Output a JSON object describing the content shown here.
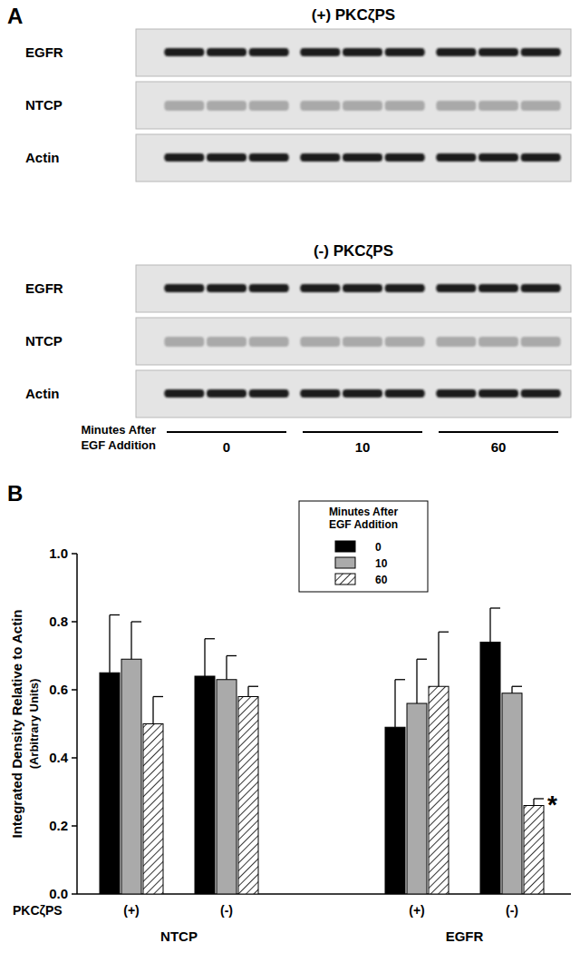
{
  "panel_a": {
    "label": "A",
    "blots": [
      {
        "title": "(+) PKCζPS",
        "rows": [
          "EGFR",
          "NTCP",
          "Actin"
        ]
      },
      {
        "title": "(-) PKCζPS",
        "rows": [
          "EGFR",
          "NTCP",
          "Actin"
        ]
      }
    ],
    "time_axis": {
      "label": "Minutes After EGF Addition",
      "groups": [
        0,
        10,
        60
      ]
    }
  },
  "chart_data": {
    "type": "bar",
    "label": "B",
    "y_label": [
      "Integrated Density Relative to Actin",
      "(Arbitrary Units)"
    ],
    "categories": [
      "(+)",
      "(-)",
      "(+)",
      "(-)"
    ],
    "category_row_label": "PKCζPS",
    "category_groups": [
      "NTCP",
      "EGFR"
    ],
    "series": [
      {
        "name": "0",
        "color": "#000000",
        "values": [
          0.65,
          0.64,
          0.49,
          0.74
        ],
        "errors": [
          0.17,
          0.11,
          0.14,
          0.1
        ]
      },
      {
        "name": "10",
        "color": "#aaaaaa",
        "values": [
          0.69,
          0.63,
          0.56,
          0.59
        ],
        "errors": [
          0.11,
          0.07,
          0.13,
          0.02
        ]
      },
      {
        "name": "60",
        "color": "#ffffff",
        "values": [
          0.5,
          0.58,
          0.61,
          0.26
        ],
        "errors": [
          0.08,
          0.03,
          0.16,
          0.02
        ],
        "annotations": [
          null,
          null,
          null,
          "*"
        ]
      }
    ],
    "legend_title": "Minutes After EGF Addition",
    "legend": "top",
    "ylim": [
      0,
      1.0
    ],
    "yticks": [
      {
        "value": 0,
        "label": "0.0"
      },
      0.2,
      0.4,
      0.6,
      0.8,
      {
        "value": 1.0,
        "label": "1.0"
      }
    ],
    "grid": false
  }
}
